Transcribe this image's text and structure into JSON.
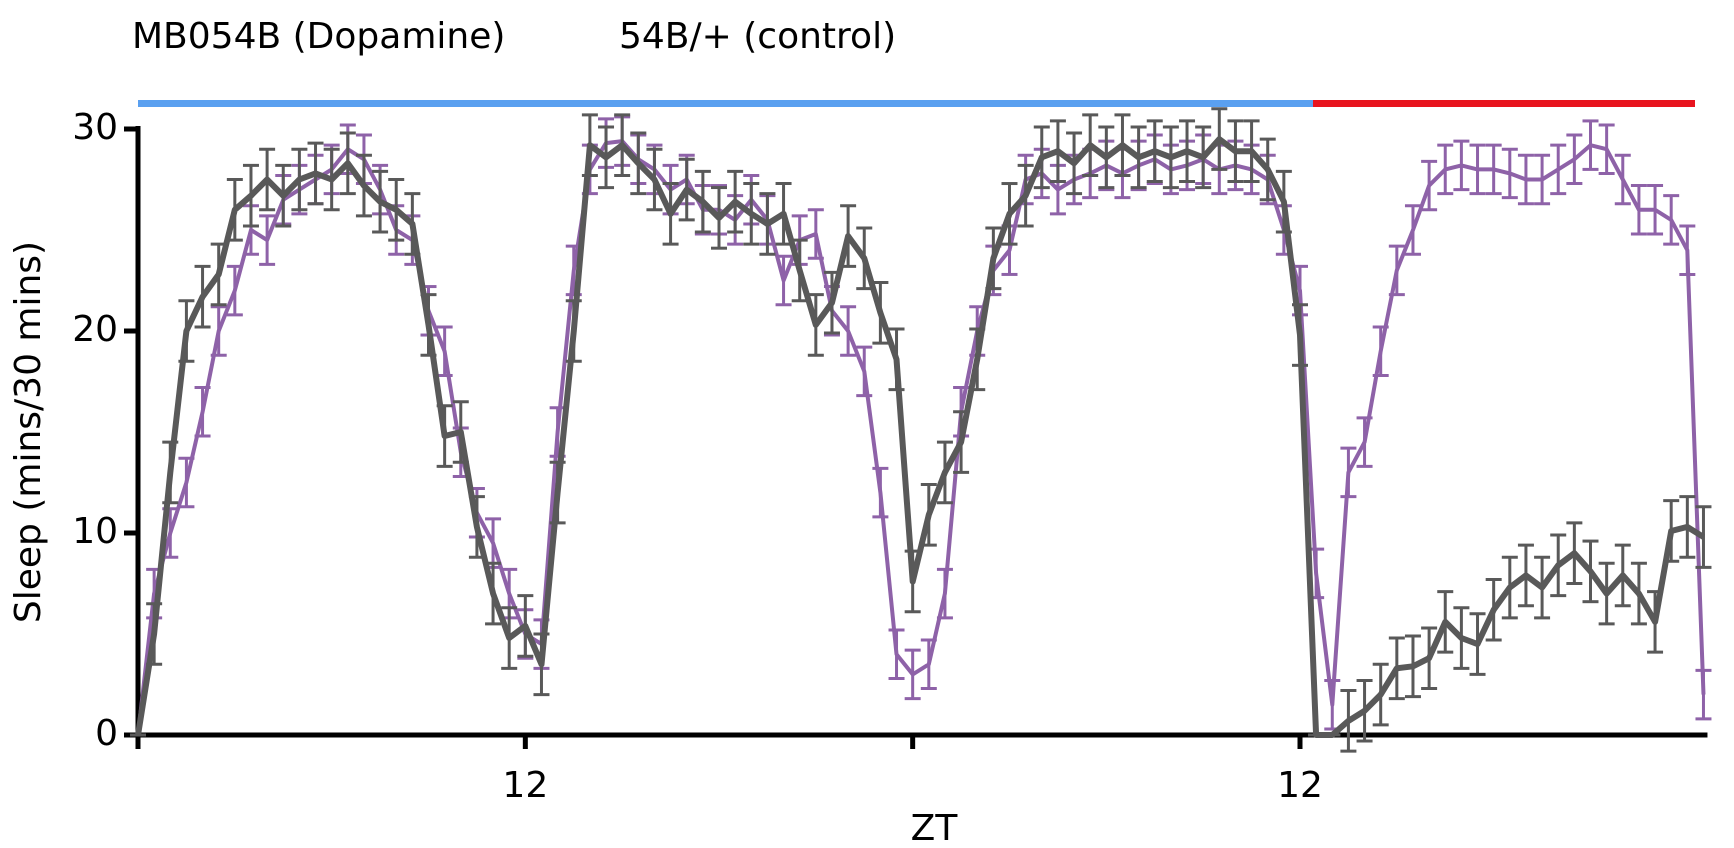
{
  "chart_data": {
    "type": "line",
    "xlabel": "ZT",
    "ylabel": "Sleep (mins/30 mins)",
    "x": [
      0,
      0.5,
      1,
      1.5,
      2,
      2.5,
      3,
      3.5,
      4,
      4.5,
      5,
      5.5,
      6,
      6.5,
      7,
      7.5,
      8,
      8.5,
      9,
      9.5,
      10,
      10.5,
      11,
      11.5,
      12,
      12.5,
      13,
      13.5,
      14,
      14.5,
      15,
      15.5,
      16,
      16.5,
      17,
      17.5,
      18,
      18.5,
      19,
      19.5,
      20,
      20.5,
      21,
      21.5,
      22,
      22.5,
      23,
      23.5,
      24,
      24.5,
      25,
      25.5,
      26,
      26.5,
      27,
      27.5,
      28,
      28.5,
      29,
      29.5,
      30,
      30.5,
      31,
      31.5,
      32,
      32.5,
      33,
      33.5,
      34,
      34.5,
      35,
      35.5,
      36,
      36.5,
      37,
      37.5,
      38,
      38.5,
      39,
      39.5,
      40,
      40.5,
      41,
      41.5,
      42,
      42.5,
      43,
      43.5,
      44,
      44.5,
      45,
      45.5,
      46,
      46.5,
      47,
      47.5,
      48,
      48.5
    ],
    "series": [
      {
        "name": "MB054B (Dopamine)",
        "color": "#595959",
        "values": [
          0,
          5,
          13,
          20,
          21.7,
          22.8,
          26,
          26.7,
          27.5,
          26.7,
          27.5,
          27.8,
          27.5,
          28.3,
          27.2,
          26.4,
          26,
          25.3,
          20.3,
          14.8,
          15,
          10.3,
          7,
          4.8,
          5.4,
          3.5,
          12,
          20,
          29.2,
          28.6,
          29.2,
          28.3,
          27.5,
          25.8,
          27,
          26.4,
          25.6,
          26.4,
          25.8,
          25.3,
          25.8,
          23,
          20.3,
          21.4,
          24.7,
          23.6,
          20.9,
          18.6,
          7.6,
          10.9,
          13,
          14.5,
          18.6,
          23.6,
          25.8,
          26.7,
          28.6,
          28.9,
          28.3,
          29.2,
          28.6,
          29.2,
          28.6,
          28.9,
          28.6,
          28.9,
          28.6,
          29.5,
          28.9,
          28.9,
          28,
          26.4,
          19.8,
          0,
          0,
          0.7,
          1.2,
          2,
          3.3,
          3.4,
          3.8,
          5.6,
          4.8,
          4.5,
          6.2,
          7.3,
          7.9,
          7.3,
          8.4,
          9,
          8.1,
          7,
          7.9,
          7,
          5.6,
          10.1,
          10.3,
          9.8
        ],
        "errors": [
          0,
          1.5,
          1.5,
          1.5,
          1.5,
          1.5,
          1.5,
          1.5,
          1.5,
          1.5,
          1.5,
          1.5,
          1.5,
          1.5,
          1.5,
          1.5,
          1.5,
          1.5,
          1.5,
          1.5,
          1.5,
          1.5,
          1.5,
          1.5,
          1.5,
          1.5,
          1.5,
          1.5,
          1.5,
          1.5,
          1.5,
          1.5,
          1.5,
          1.5,
          1.5,
          1.5,
          1.5,
          1.5,
          1.5,
          1.5,
          1.5,
          1.5,
          1.5,
          1.5,
          1.5,
          1.5,
          1.5,
          1.5,
          1.5,
          1.5,
          1.5,
          1.5,
          1.5,
          1.5,
          1.5,
          1.5,
          1.5,
          1.5,
          1.5,
          1.5,
          1.5,
          1.5,
          1.5,
          1.5,
          1.5,
          1.5,
          1.5,
          1.5,
          1.5,
          1.5,
          1.5,
          1.5,
          1.5,
          0,
          0,
          1.5,
          1.5,
          1.5,
          1.5,
          1.5,
          1.5,
          1.5,
          1.5,
          1.5,
          1.5,
          1.5,
          1.5,
          1.5,
          1.5,
          1.5,
          1.5,
          1.5,
          1.5,
          1.5,
          1.5,
          1.5,
          1.5,
          1.5
        ]
      },
      {
        "name": "54B/+ (control)",
        "color": "#8e62a8",
        "values": [
          0,
          7,
          10,
          12.5,
          16,
          20,
          22,
          25,
          24.5,
          26.5,
          27,
          27.5,
          28,
          29,
          28.5,
          27,
          25,
          24.5,
          21,
          19,
          14,
          11,
          9.5,
          7,
          5,
          4.5,
          15,
          23,
          28,
          29.3,
          29.4,
          28.5,
          28,
          27,
          27.5,
          26,
          26,
          25.5,
          26.5,
          25.5,
          22.5,
          24.5,
          24.8,
          21,
          20,
          18,
          12,
          4,
          3,
          3.5,
          7,
          16,
          20,
          23,
          24,
          27.5,
          27.8,
          27,
          27.5,
          27.8,
          28.2,
          27.8,
          28.2,
          28.5,
          28,
          28.2,
          28.5,
          28,
          28.2,
          28,
          27.5,
          25,
          22,
          8,
          1.5,
          13,
          14.5,
          19,
          23,
          25,
          27.2,
          28,
          28.2,
          28,
          28,
          27.8,
          27.5,
          27.5,
          28,
          28.5,
          29.2,
          29,
          27.5,
          26,
          26,
          25.5,
          24,
          2
        ],
        "errors": [
          0,
          1.2,
          1.2,
          1.2,
          1.2,
          1.2,
          1.2,
          1.2,
          1.2,
          1.2,
          1.2,
          1.2,
          1.2,
          1.2,
          1.2,
          1.2,
          1.2,
          1.2,
          1.2,
          1.2,
          1.2,
          1.2,
          1.2,
          1.2,
          1.2,
          1.2,
          1.2,
          1.2,
          1.2,
          1.2,
          1.2,
          1.2,
          1.2,
          1.2,
          1.2,
          1.2,
          1.2,
          1.2,
          1.2,
          1.2,
          1.2,
          1.2,
          1.2,
          1.2,
          1.2,
          1.2,
          1.2,
          1.2,
          1.2,
          1.2,
          1.2,
          1.2,
          1.2,
          1.2,
          1.2,
          1.2,
          1.2,
          1.2,
          1.2,
          1.2,
          1.2,
          1.2,
          1.2,
          1.2,
          1.2,
          1.2,
          1.2,
          1.2,
          1.2,
          1.2,
          1.2,
          1.2,
          1.2,
          1.2,
          1.2,
          1.2,
          1.2,
          1.2,
          1.2,
          1.2,
          1.2,
          1.2,
          1.2,
          1.2,
          1.2,
          1.2,
          1.2,
          1.2,
          1.2,
          1.2,
          1.2,
          1.2,
          1.2,
          1.2,
          1.2,
          1.2,
          1.2,
          1.2
        ]
      }
    ],
    "xlim": [
      0,
      48.5
    ],
    "xticks": [
      {
        "value": 0,
        "label": null
      },
      12,
      {
        "value": 24,
        "label": null
      },
      {
        "value": 36,
        "label": "12"
      }
    ],
    "ylim": [
      0,
      30
    ],
    "yticks": [
      0,
      10,
      20,
      30
    ]
  }
}
